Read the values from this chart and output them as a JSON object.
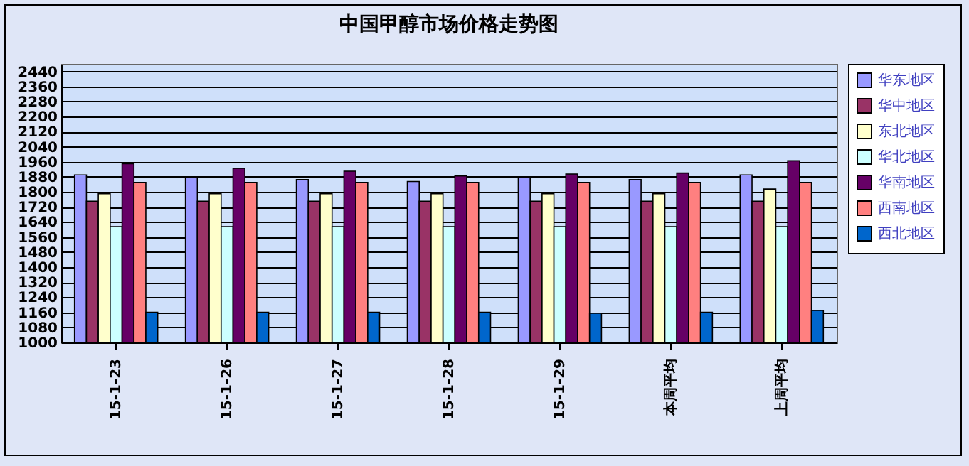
{
  "chart_data": {
    "type": "bar",
    "title": "中国甲醇市场价格走势图",
    "categories": [
      "15-1-23",
      "15-1-26",
      "15-1-27",
      "15-1-28",
      "15-1-29",
      "本周平均",
      "上周平均"
    ],
    "series": [
      {
        "name": "华东地区",
        "color": "#9999ff",
        "values": [
          1890,
          1875,
          1865,
          1855,
          1875,
          1865,
          1890
        ]
      },
      {
        "name": "华中地区",
        "color": "#993366",
        "values": [
          1750,
          1750,
          1750,
          1750,
          1750,
          1750,
          1750
        ]
      },
      {
        "name": "东北地区",
        "color": "#ffffcc",
        "values": [
          1790,
          1790,
          1790,
          1790,
          1790,
          1790,
          1815
        ]
      },
      {
        "name": "华北地区",
        "color": "#ccffff",
        "values": [
          1615,
          1615,
          1615,
          1615,
          1615,
          1615,
          1615
        ]
      },
      {
        "name": "华南地区",
        "color": "#660066",
        "values": [
          1950,
          1925,
          1910,
          1885,
          1895,
          1900,
          1965
        ]
      },
      {
        "name": "西南地区",
        "color": "#ff8080",
        "values": [
          1850,
          1850,
          1850,
          1850,
          1850,
          1850,
          1850
        ]
      },
      {
        "name": "西北地区",
        "color": "#0066cc",
        "values": [
          1160,
          1160,
          1160,
          1160,
          1155,
          1160,
          1170
        ]
      }
    ],
    "ylim": [
      1000,
      2480
    ],
    "yticks": [
      1000,
      1080,
      1160,
      1240,
      1320,
      1400,
      1480,
      1560,
      1640,
      1720,
      1800,
      1880,
      1960,
      2040,
      2120,
      2200,
      2280,
      2360,
      2440
    ],
    "grid": "y",
    "legend": "right"
  }
}
